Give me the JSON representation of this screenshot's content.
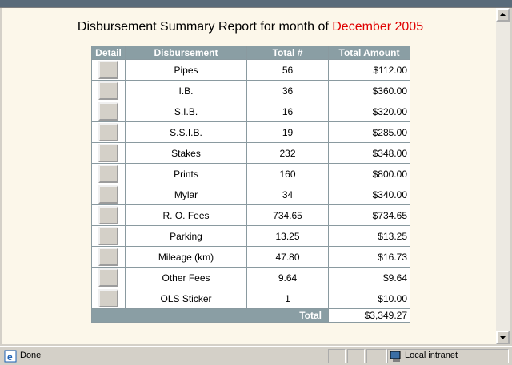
{
  "report": {
    "title": {
      "text": "Disbursement Summary Report for month of",
      "month": "December 2005"
    },
    "table": {
      "headers": [
        "Detail",
        "Disbursement",
        "Total #",
        "Total Amount"
      ],
      "rows": [
        [
          "Pipes",
          "56",
          "$112.00"
        ],
        [
          "I.B.",
          "36",
          "$360.00"
        ],
        [
          "S.I.B.",
          "16",
          "$320.00"
        ],
        [
          "S.S.I.B.",
          "19",
          "$285.00"
        ],
        [
          "Stakes",
          "232",
          "$348.00"
        ],
        [
          "Prints",
          "160",
          "$800.00"
        ],
        [
          "Mylar",
          "34",
          "$340.00"
        ],
        [
          "R. O. Fees",
          "734.65",
          "$734.65"
        ],
        [
          "Parking",
          "13.25",
          "$13.25"
        ],
        [
          "Mileage (km)",
          "47.80",
          "$16.73"
        ],
        [
          "Other Fees",
          "9.64",
          "$9.64"
        ],
        [
          "OLS Sticker",
          "1",
          "$10.00"
        ]
      ],
      "total_label": "Total",
      "total_amount": "$3,349.27"
    }
  },
  "status_bar": {
    "status": "Done",
    "zone": "Local intranet"
  }
}
